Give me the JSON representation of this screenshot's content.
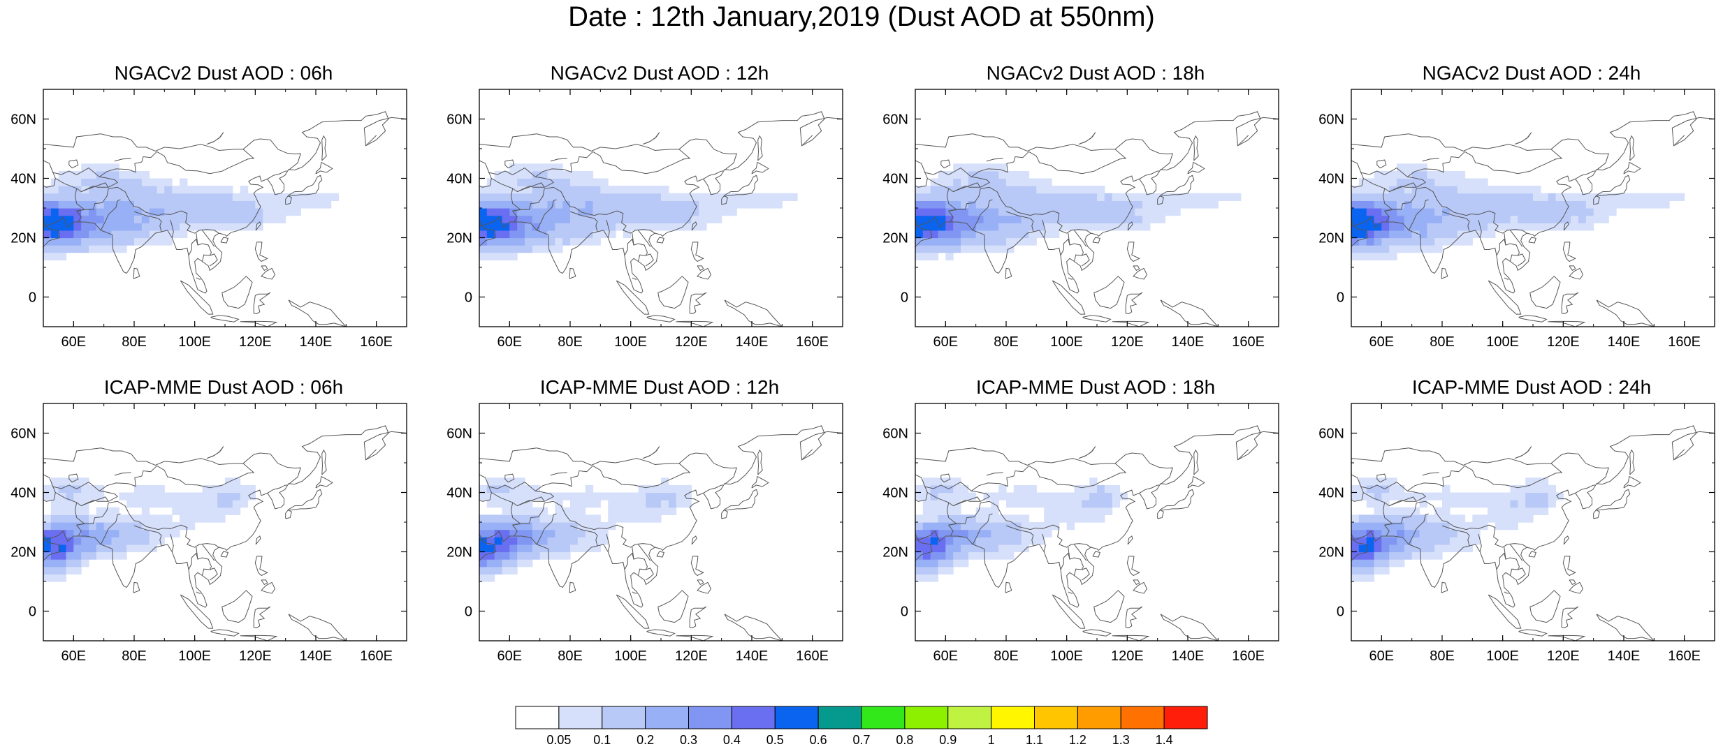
{
  "title": "Date : 12th January,2019 (Dust AOD at 550nm)",
  "panels": [
    {
      "title": "NGACv2 Dust AOD : 06h"
    },
    {
      "title": "NGACv2 Dust AOD : 12h"
    },
    {
      "title": "NGACv2 Dust AOD : 18h"
    },
    {
      "title": "NGACv2 Dust AOD : 24h"
    },
    {
      "title": "ICAP-MME Dust AOD : 06h"
    },
    {
      "title": "ICAP-MME Dust AOD : 12h"
    },
    {
      "title": "ICAP-MME Dust AOD : 18h"
    },
    {
      "title": "ICAP-MME Dust AOD : 24h"
    }
  ],
  "map": {
    "lon_range": [
      50,
      170
    ],
    "lat_range": [
      -10,
      70
    ],
    "x_ticks": [
      {
        "value": 60,
        "label": "60E"
      },
      {
        "value": 80,
        "label": "80E"
      },
      {
        "value": 100,
        "label": "100E"
      },
      {
        "value": 120,
        "label": "120E"
      },
      {
        "value": 140,
        "label": "140E"
      },
      {
        "value": 160,
        "label": "160E"
      }
    ],
    "y_ticks": [
      {
        "value": 0,
        "label": "0"
      },
      {
        "value": 20,
        "label": "20N"
      },
      {
        "value": 40,
        "label": "40N"
      },
      {
        "value": 60,
        "label": "60N"
      }
    ]
  },
  "colorbar": {
    "colors": [
      "#ffffff",
      "#d6e0fb",
      "#b8c8f7",
      "#98b0f5",
      "#8096f2",
      "#6a6ef0",
      "#0a64f0",
      "#069a8e",
      "#33e81a",
      "#8cf000",
      "#c0f241",
      "#fff600",
      "#ffc600",
      "#ff9d00",
      "#ff7100",
      "#ff1e0a"
    ],
    "labels": [
      "0.05",
      "0.1",
      "0.2",
      "0.3",
      "0.4",
      "0.5",
      "0.6",
      "0.7",
      "0.8",
      "0.9",
      "1",
      "1.1",
      "1.2",
      "1.3",
      "1.4"
    ]
  }
}
